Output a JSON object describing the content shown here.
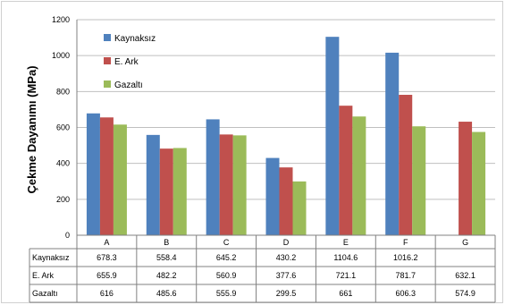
{
  "chart_data": {
    "type": "bar",
    "title": "",
    "ylabel": "Çekme Dayanımı (MPa)",
    "xlabel": "",
    "ylim": [
      0,
      1200
    ],
    "yticks": [
      0,
      200,
      400,
      600,
      800,
      1000,
      1200
    ],
    "grid": true,
    "legend_position": "top-left",
    "categories": [
      "A",
      "B",
      "C",
      "D",
      "E",
      "F",
      "G"
    ],
    "series": [
      {
        "name": "Kaynaksız",
        "color": "#4F81BD",
        "values": [
          678.3,
          558.4,
          645.2,
          430.2,
          1104.6,
          1016.2,
          null
        ],
        "labels": [
          "678.3",
          "558.4",
          "645.2",
          "430.2",
          "1104.6",
          "1016.2",
          ""
        ]
      },
      {
        "name": "E. Ark",
        "color": "#C0504D",
        "values": [
          655.9,
          482.2,
          560.9,
          377.6,
          721.1,
          781.7,
          632.1
        ],
        "labels": [
          "655.9",
          "482.2",
          "560.9",
          "377.6",
          "721.1",
          "781.7",
          "632.1"
        ]
      },
      {
        "name": "Gazaltı",
        "color": "#9BBB59",
        "values": [
          616,
          485.6,
          555.9,
          299.5,
          661,
          606.3,
          574.9
        ],
        "labels": [
          "616",
          "485.6",
          "555.9",
          "299.5",
          "661",
          "606.3",
          "574.9"
        ]
      }
    ]
  }
}
